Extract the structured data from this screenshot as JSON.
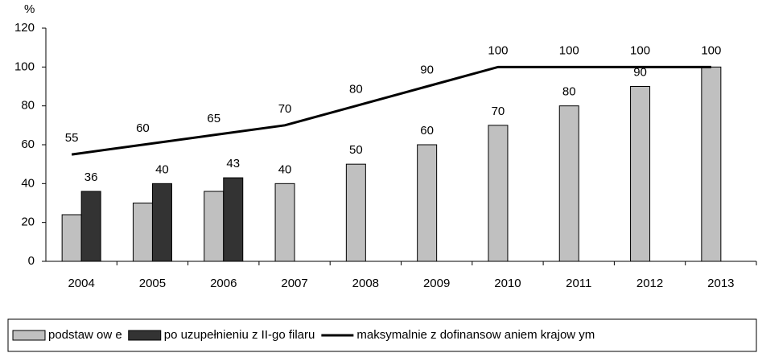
{
  "chart_data": {
    "type": "bar",
    "y_label": "%",
    "categories": [
      "2004",
      "2005",
      "2006",
      "2007",
      "2008",
      "2009",
      "2010",
      "2011",
      "2012",
      "2013"
    ],
    "series": [
      {
        "name": "podstaw ow e",
        "color": "#c0c0c0",
        "values": [
          24,
          30,
          36,
          40,
          50,
          60,
          70,
          80,
          90,
          100
        ],
        "value_labels": [
          null,
          null,
          null,
          "40",
          "50",
          "60",
          "70",
          "80",
          "90",
          null
        ]
      },
      {
        "name": "po uzupełnieniu z II-go filaru",
        "color": "#333333",
        "values": [
          36,
          40,
          43,
          null,
          null,
          null,
          null,
          null,
          null,
          null
        ],
        "value_labels": [
          "36",
          "40",
          "43",
          null,
          null,
          null,
          null,
          null,
          null,
          null
        ]
      },
      {
        "name": "maksymalnie z dofinansow aniem krajow ym",
        "type": "line",
        "color": "#000000",
        "values": [
          55,
          60,
          65,
          70,
          80,
          90,
          100,
          100,
          100,
          100
        ],
        "value_labels": [
          "55",
          "60",
          "65",
          "70",
          "80",
          "90",
          "100",
          "100",
          "100",
          "100"
        ]
      }
    ],
    "ylim": [
      0,
      120
    ],
    "yticks": [
      0,
      20,
      40,
      60,
      80,
      100,
      120
    ],
    "grid": false,
    "legend": "bottom"
  }
}
